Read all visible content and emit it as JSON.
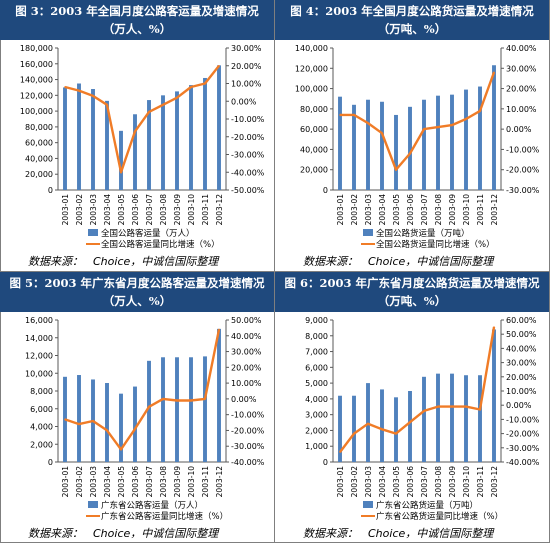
{
  "source_label": "数据来源：",
  "source_value": "Choice，中诚信国际整理",
  "colors": {
    "header_bg": "#1f497d",
    "bar": "#4f81bd",
    "line": "#f07c27",
    "axis": "#595959"
  },
  "chart_data": [
    {
      "type": "bar",
      "title_line1": "图 3：2003 年全国月度公路客运量及增速情况",
      "title_line2": "（万人、%）",
      "categories": [
        "2003-01",
        "2003-02",
        "2003-03",
        "2003-04",
        "2003-05",
        "2003-06",
        "2003-07",
        "2003-08",
        "2003-09",
        "2003-10",
        "2003-11",
        "2003-12"
      ],
      "ylim": [
        0,
        180000
      ],
      "yticks": [
        0,
        20000,
        40000,
        60000,
        80000,
        100000,
        120000,
        140000,
        160000,
        180000
      ],
      "ytick_labels": [
        "0",
        "20,000",
        "40,000",
        "60,000",
        "80,000",
        "100,000",
        "120,000",
        "140,000",
        "160,000",
        "180,000"
      ],
      "y2lim": [
        -50,
        30
      ],
      "y2ticks": [
        -50,
        -40,
        -30,
        -20,
        -10,
        0,
        10,
        20,
        30
      ],
      "y2tick_labels": [
        "-50.00%",
        "-40.00%",
        "-30.00%",
        "-20.00%",
        "-10.00%",
        "0.00%",
        "10.00%",
        "20.00%",
        "30.00%"
      ],
      "series": [
        {
          "name": "全国公路客运量（万人）",
          "type": "bar",
          "axis": "left",
          "values": [
            130000,
            135000,
            128000,
            113000,
            75000,
            96000,
            114000,
            120000,
            125000,
            133000,
            142000,
            158000
          ]
        },
        {
          "name": "全国公路客运量同比增速（%）",
          "type": "line",
          "axis": "right",
          "values": [
            8,
            6,
            3,
            -2,
            -40,
            -17,
            -6,
            -2,
            2,
            8,
            10,
            20
          ]
        }
      ]
    },
    {
      "type": "bar",
      "title_line1": "图 4：2003 年全国月度公路货运量及增速情况",
      "title_line2": "（万吨、%）",
      "categories": [
        "2003-01",
        "2003-02",
        "2003-03",
        "2003-04",
        "2003-05",
        "2003-06",
        "2003-07",
        "2003-08",
        "2003-09",
        "2003-10",
        "2003-11",
        "2003-12"
      ],
      "ylim": [
        0,
        140000
      ],
      "yticks": [
        0,
        20000,
        40000,
        60000,
        80000,
        100000,
        120000,
        140000
      ],
      "ytick_labels": [
        "0",
        "20,000",
        "40,000",
        "60,000",
        "80,000",
        "100,000",
        "120,000",
        "140,000"
      ],
      "y2lim": [
        -30,
        40
      ],
      "y2ticks": [
        -30,
        -20,
        -10,
        0,
        10,
        20,
        30,
        40
      ],
      "y2tick_labels": [
        "-30.00%",
        "-20.00%",
        "-10.00%",
        "0.00%",
        "10.00%",
        "20.00%",
        "30.00%",
        "40.00%"
      ],
      "series": [
        {
          "name": "全国公路货运量（万吨）",
          "type": "bar",
          "axis": "left",
          "values": [
            92000,
            84000,
            89000,
            87000,
            74000,
            82000,
            89000,
            93000,
            94000,
            99000,
            102000,
            123000
          ]
        },
        {
          "name": "全国公路货运量同比增速（%）",
          "type": "line",
          "axis": "right",
          "values": [
            7,
            7,
            3,
            -2,
            -20,
            -12,
            0,
            1,
            2,
            5,
            9,
            28
          ]
        }
      ]
    },
    {
      "type": "bar",
      "title_line1": "图 5：2003 年广东省月度公路客运量及增速情况",
      "title_line2": "（万人、%）",
      "categories": [
        "2003-01",
        "2003-02",
        "2003-03",
        "2003-04",
        "2003-05",
        "2003-06",
        "2003-07",
        "2003-08",
        "2003-09",
        "2003-10",
        "2003-11",
        "2003-12"
      ],
      "ylim": [
        0,
        16000
      ],
      "yticks": [
        0,
        2000,
        4000,
        6000,
        8000,
        10000,
        12000,
        14000,
        16000
      ],
      "ytick_labels": [
        "0",
        "2,000",
        "4,000",
        "6,000",
        "8,000",
        "10,000",
        "12,000",
        "14,000",
        "16,000"
      ],
      "y2lim": [
        -40,
        50
      ],
      "y2ticks": [
        -40,
        -30,
        -20,
        -10,
        0,
        10,
        20,
        30,
        40,
        50
      ],
      "y2tick_labels": [
        "-40.00%",
        "-30.00%",
        "-20.00%",
        "-10.00%",
        "0.00%",
        "10.00%",
        "20.00%",
        "30.00%",
        "40.00%",
        "50.00%"
      ],
      "series": [
        {
          "name": "广东省公路客运量（万人）",
          "type": "bar",
          "axis": "left",
          "values": [
            9600,
            9800,
            9300,
            8900,
            7700,
            8500,
            11400,
            11800,
            11800,
            11800,
            11900,
            15000
          ]
        },
        {
          "name": "广东省公路客运量同比增速（%）",
          "type": "line",
          "axis": "right",
          "values": [
            -13,
            -16,
            -14,
            -20,
            -32,
            -19,
            -5,
            0,
            -1,
            -1,
            0,
            44
          ]
        }
      ]
    },
    {
      "type": "bar",
      "title_line1": "图 6：2003 年广东省月度公路货运量及增速情况",
      "title_line2": "（万吨、%）",
      "categories": [
        "2003-01",
        "2003-02",
        "2003-03",
        "2003-04",
        "2003-05",
        "2003-06",
        "2003-07",
        "2003-08",
        "2003-09",
        "2003-10",
        "2003-11",
        "2003-12"
      ],
      "ylim": [
        0,
        9000
      ],
      "yticks": [
        0,
        1000,
        2000,
        3000,
        4000,
        5000,
        6000,
        7000,
        8000,
        9000
      ],
      "ytick_labels": [
        "0",
        "1,000",
        "2,000",
        "3,000",
        "4,000",
        "5,000",
        "6,000",
        "7,000",
        "8,000",
        "9,000"
      ],
      "y2lim": [
        -40,
        60
      ],
      "y2ticks": [
        -40,
        -30,
        -20,
        -10,
        0,
        10,
        20,
        30,
        40,
        50,
        60
      ],
      "y2tick_labels": [
        "-40.00%",
        "-30.00%",
        "-20.00%",
        "-10.00%",
        "0.00%",
        "10.00%",
        "20.00%",
        "30.00%",
        "40.00%",
        "50.00%",
        "60.00%"
      ],
      "series": [
        {
          "name": "广东省公路货运量（万吨）",
          "type": "bar",
          "axis": "left",
          "values": [
            4200,
            4200,
            5000,
            4600,
            4100,
            4500,
            5400,
            5600,
            5600,
            5500,
            5500,
            8400
          ]
        },
        {
          "name": "广东省公路货运量同比增速（%）",
          "type": "line",
          "axis": "right",
          "values": [
            -33,
            -20,
            -13,
            -17,
            -20,
            -12,
            -4,
            -1,
            -1,
            -1,
            -3,
            55
          ]
        }
      ]
    }
  ]
}
